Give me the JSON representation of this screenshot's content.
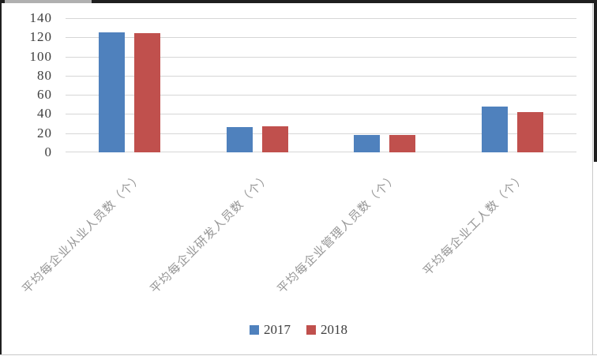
{
  "chart_data": {
    "type": "bar",
    "title": "",
    "xlabel": "",
    "ylabel": "",
    "categories": [
      "平均每企业从业人员数（个）",
      "平均每企业研发人员数（个）",
      "平均每企业管理人员数（个）",
      "平均每企业工人数（个）"
    ],
    "series": [
      {
        "name": "2017",
        "color": "#4F81BD",
        "values": [
          125,
          26,
          18,
          48
        ]
      },
      {
        "name": "2018",
        "color": "#C0504D",
        "values": [
          124,
          27,
          18,
          42
        ]
      }
    ],
    "ylim": [
      0,
      140
    ],
    "yticks": [
      0,
      20,
      40,
      60,
      80,
      100,
      120,
      140
    ],
    "grid": true,
    "legend_position": "bottom"
  },
  "style": {
    "background": "#ffffff",
    "gridline_color": "#d6d6d6",
    "tick_label_color": "#3d3d3d",
    "category_label_color": "#969696",
    "legend_text_color": "#3d3d3d",
    "series_2017_color": "#4F81BD",
    "series_2018_color": "#C0504D",
    "edge_dark": "#1f1f1f",
    "edge_light": "#b0b0b0",
    "edge_gray": "#c9c9c9"
  }
}
